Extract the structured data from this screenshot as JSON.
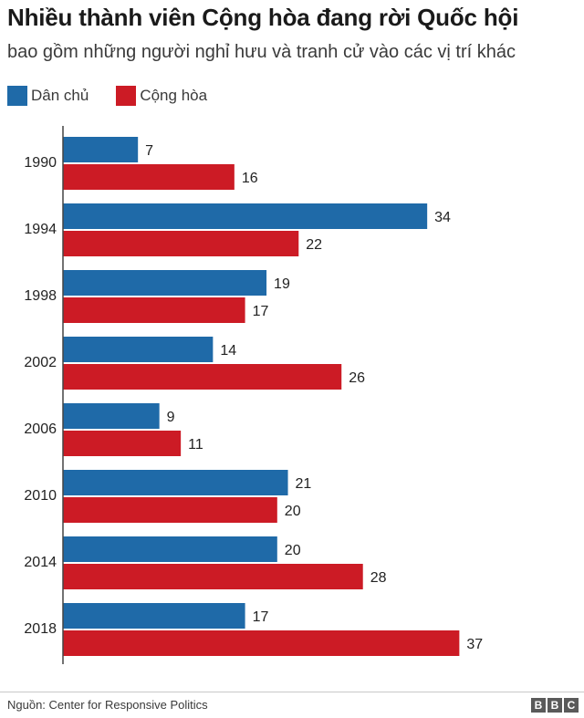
{
  "title": "Nhiều thành viên Cộng hòa đang rời Quốc hội",
  "subtitle": "bao gồm những người nghỉ hưu và tranh cử vào các vị trí khác",
  "source": "Nguồn: Center for Responsive Politics",
  "logo": [
    "B",
    "B",
    "C"
  ],
  "colors": {
    "dem": "#1f6aa8",
    "rep": "#cc1b25",
    "axis": "#444444"
  },
  "chart_data": {
    "type": "bar",
    "orientation": "horizontal",
    "categories": [
      "1990",
      "1994",
      "1998",
      "2002",
      "2006",
      "2010",
      "2014",
      "2018"
    ],
    "series": [
      {
        "name": "Dân chủ",
        "color": "#1f6aa8",
        "values": [
          7,
          34,
          19,
          14,
          9,
          21,
          20,
          17
        ]
      },
      {
        "name": "Cộng hòa",
        "color": "#cc1b25",
        "values": [
          16,
          22,
          17,
          26,
          11,
          20,
          28,
          37
        ]
      }
    ],
    "xlim": [
      0,
      40
    ],
    "grid": false,
    "data_labels": true,
    "legend": "top-left"
  }
}
